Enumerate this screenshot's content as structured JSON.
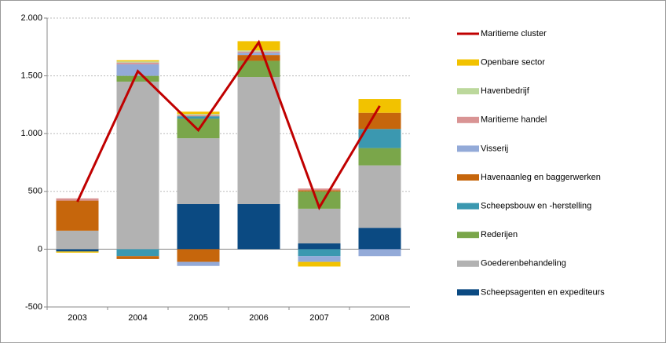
{
  "chart_data": {
    "type": "bar",
    "stacked": true,
    "categories": [
      "2003",
      "2004",
      "2005",
      "2006",
      "2007",
      "2008"
    ],
    "series": [
      {
        "name": "Scheepsagenten en expediteurs",
        "color": "#0b4a82",
        "values": [
          -20,
          0,
          390,
          390,
          50,
          185
        ]
      },
      {
        "name": "Goederenbehandeling",
        "color": "#b2b2b2",
        "values": [
          160,
          1450,
          570,
          1100,
          300,
          540
        ]
      },
      {
        "name": "Rederijen",
        "color": "#7aa64a",
        "values": [
          0,
          50,
          170,
          140,
          150,
          150
        ]
      },
      {
        "name": "Scheepsbouw en -herstelling",
        "color": "#3b98b0",
        "values": [
          0,
          -60,
          20,
          0,
          -60,
          165
        ]
      },
      {
        "name": "Havenaanleg  en baggerwerken",
        "color": "#c6660c",
        "values": [
          260,
          -25,
          -110,
          50,
          10,
          140
        ]
      },
      {
        "name": "Visserij",
        "color": "#93aad8",
        "values": [
          0,
          100,
          -35,
          20,
          -50,
          -60
        ]
      },
      {
        "name": "Maritieme handel",
        "color": "#d99494",
        "values": [
          20,
          15,
          10,
          10,
          15,
          0
        ]
      },
      {
        "name": "Havenbedrijf",
        "color": "#bcd89c",
        "values": [
          0,
          10,
          10,
          10,
          0,
          0
        ]
      },
      {
        "name": "Openbare sector",
        "color": "#f2c200",
        "values": [
          -10,
          10,
          20,
          80,
          -40,
          120
        ]
      },
      {
        "name": "Maritieme cluster",
        "type": "line",
        "color": "#c00000",
        "values": [
          410,
          1540,
          1030,
          1790,
          360,
          1240
        ]
      }
    ],
    "ylim": [
      -500,
      2000
    ],
    "yticks": [
      -500,
      0,
      500,
      {
        "value": 1000,
        "label": "1.000"
      },
      {
        "value": 1500,
        "label": "1.500"
      },
      {
        "value": 2000,
        "label": "2.000"
      }
    ],
    "grid": true
  }
}
